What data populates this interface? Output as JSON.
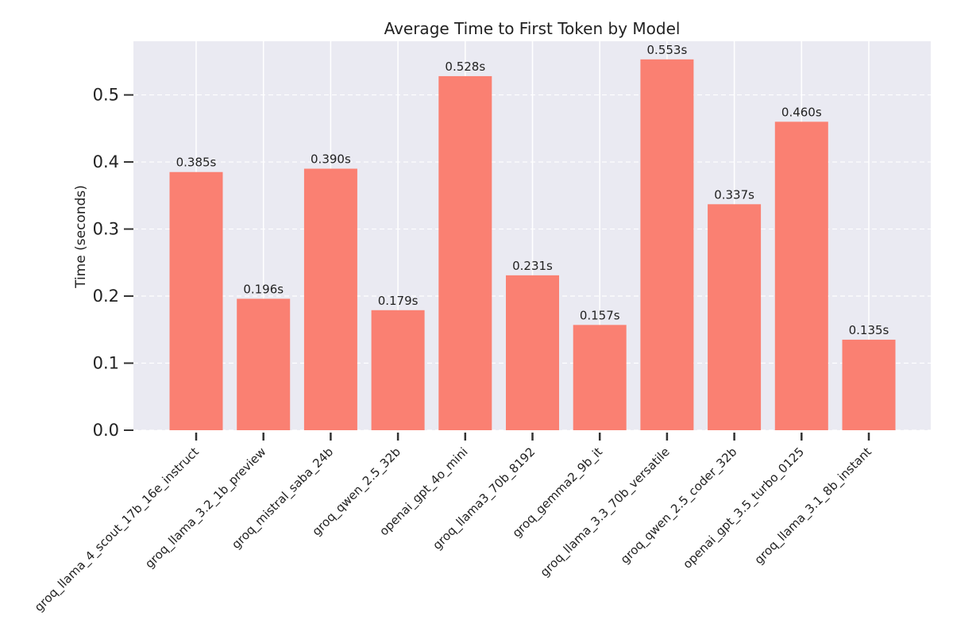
{
  "chart_data": {
    "type": "bar",
    "title": "Average Time to First Token by Model",
    "xlabel": "",
    "ylabel": "Time (seconds)",
    "categories": [
      "groq_llama_4_scout_17b_16e_instruct",
      "groq_llama_3.2_1b_preview",
      "groq_mistral_saba_24b",
      "groq_qwen_2.5_32b",
      "openai_gpt_4o_mini",
      "groq_llama3_70b_8192",
      "groq_gemma2_9b_it",
      "groq_llama_3.3_70b_versatile",
      "groq_qwen_2.5_coder_32b",
      "openai_gpt_3.5_turbo_0125",
      "groq_llama_3.1_8b_instant"
    ],
    "values": [
      0.385,
      0.196,
      0.39,
      0.179,
      0.528,
      0.231,
      0.157,
      0.553,
      0.337,
      0.46,
      0.135
    ],
    "value_labels": [
      "0.385s",
      "0.196s",
      "0.390s",
      "0.179s",
      "0.528s",
      "0.231s",
      "0.157s",
      "0.553s",
      "0.337s",
      "0.460s",
      "0.135s"
    ],
    "yticks": [
      0.0,
      0.1,
      0.2,
      0.3,
      0.4,
      0.5
    ],
    "ytick_labels": [
      "0.0",
      "0.1",
      "0.2",
      "0.3",
      "0.4",
      "0.5"
    ],
    "ylim": [
      0,
      0.58
    ],
    "grid": true,
    "colors": {
      "bar": "#fa8072",
      "plot_background": "#eaeaf2",
      "grid": "#ffffff",
      "text": "#222222"
    }
  }
}
